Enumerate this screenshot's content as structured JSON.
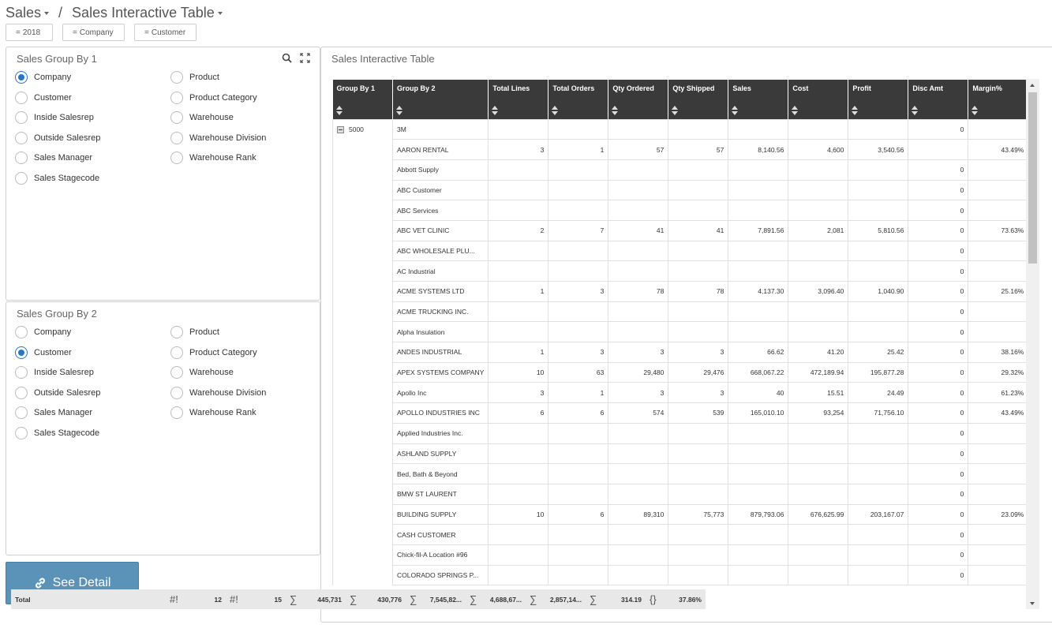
{
  "breadcrumb": {
    "root": "Sales",
    "separator": "/",
    "current": "Sales Interactive Table"
  },
  "filters": [
    {
      "symbol": "=",
      "label": "2018"
    },
    {
      "symbol": "=",
      "label": "Company"
    },
    {
      "symbol": "=",
      "label": "Customer"
    }
  ],
  "group1": {
    "title": "Sales Group By 1",
    "left": [
      "Company",
      "Customer",
      "Inside Salesrep",
      "Outside Salesrep",
      "Sales Manager",
      "Sales Stagecode"
    ],
    "right": [
      "Product",
      "Product Category",
      "Warehouse",
      "Warehouse Division",
      "Warehouse Rank"
    ],
    "selected": "Company"
  },
  "group2": {
    "title": "Sales Group By 2",
    "left": [
      "Company",
      "Customer",
      "Inside Salesrep",
      "Outside Salesrep",
      "Sales Manager",
      "Sales Stagecode"
    ],
    "right": [
      "Product",
      "Product Category",
      "Warehouse",
      "Warehouse Division",
      "Warehouse Rank"
    ],
    "selected": "Customer"
  },
  "detail_button": "See Detail",
  "table": {
    "title": "Sales Interactive Table",
    "columns": [
      "Group By 1",
      "Group By 2",
      "Total Lines",
      "Total Orders",
      "Qty Ordered",
      "Qty Shipped",
      "Sales",
      "Cost",
      "Profit",
      "Disc Amt",
      "Margin%"
    ],
    "group1_value": "5000",
    "rows": [
      [
        "3M",
        "",
        "",
        "",
        "",
        "",
        "",
        "",
        "0",
        ""
      ],
      [
        "AARON RENTAL",
        "3",
        "1",
        "57",
        "57",
        "8,140.56",
        "4,600",
        "3,540.56",
        "",
        "43.49%"
      ],
      [
        "Abbott Supply",
        "",
        "",
        "",
        "",
        "",
        "",
        "",
        "0",
        ""
      ],
      [
        "ABC Customer",
        "",
        "",
        "",
        "",
        "",
        "",
        "",
        "0",
        ""
      ],
      [
        "ABC Services",
        "",
        "",
        "",
        "",
        "",
        "",
        "",
        "0",
        ""
      ],
      [
        "ABC VET CLINIC",
        "2",
        "7",
        "41",
        "41",
        "7,891.56",
        "2,081",
        "5,810.56",
        "0",
        "73.63%"
      ],
      [
        "ABC WHOLESALE PLU...",
        "",
        "",
        "",
        "",
        "",
        "",
        "",
        "0",
        ""
      ],
      [
        "AC Industrial",
        "",
        "",
        "",
        "",
        "",
        "",
        "",
        "0",
        ""
      ],
      [
        "ACME SYSTEMS LTD",
        "1",
        "3",
        "78",
        "78",
        "4,137.30",
        "3,096.40",
        "1,040.90",
        "0",
        "25.16%"
      ],
      [
        "ACME TRUCKING INC.",
        "",
        "",
        "",
        "",
        "",
        "",
        "",
        "0",
        ""
      ],
      [
        "Alpha Insulation",
        "",
        "",
        "",
        "",
        "",
        "",
        "",
        "0",
        ""
      ],
      [
        "ANDES INDUSTRIAL",
        "1",
        "3",
        "3",
        "3",
        "66.62",
        "41.20",
        "25.42",
        "0",
        "38.16%"
      ],
      [
        "APEX SYSTEMS COMPANY",
        "10",
        "63",
        "29,480",
        "29,476",
        "668,067.22",
        "472,189.94",
        "195,877.28",
        "0",
        "29.32%"
      ],
      [
        "Apollo Inc",
        "3",
        "1",
        "3",
        "3",
        "40",
        "15.51",
        "24.49",
        "0",
        "61.23%"
      ],
      [
        "APOLLO INDUSTRIES INC",
        "6",
        "6",
        "574",
        "539",
        "165,010.10",
        "93,254",
        "71,756.10",
        "0",
        "43.49%"
      ],
      [
        "Applied Industries Inc.",
        "",
        "",
        "",
        "",
        "",
        "",
        "",
        "0",
        ""
      ],
      [
        "ASHLAND SUPPLY",
        "",
        "",
        "",
        "",
        "",
        "",
        "",
        "0",
        ""
      ],
      [
        "Bed, Bath & Beyond",
        "",
        "",
        "",
        "",
        "",
        "",
        "",
        "0",
        ""
      ],
      [
        "BMW ST LAURENT",
        "",
        "",
        "",
        "",
        "",
        "",
        "",
        "0",
        ""
      ],
      [
        "BUILDING SUPPLY",
        "10",
        "6",
        "89,310",
        "75,773",
        "879,793.06",
        "676,625.99",
        "203,167.07",
        "0",
        "23.09%"
      ],
      [
        "CASH CUSTOMER",
        "",
        "",
        "",
        "",
        "",
        "",
        "",
        "0",
        ""
      ],
      [
        "Chick-fil-A Location #96",
        "",
        "",
        "",
        "",
        "",
        "",
        "",
        "0",
        ""
      ],
      [
        "COLORADO SPRINGS P...",
        "",
        "",
        "",
        "",
        "",
        "",
        "",
        "0",
        ""
      ]
    ],
    "totals": {
      "label": "Total",
      "cells": [
        {
          "sym": "#!",
          "val": "12"
        },
        {
          "sym": "#!",
          "val": "15"
        },
        {
          "sym": "∑",
          "val": "445,731"
        },
        {
          "sym": "∑",
          "val": "430,776"
        },
        {
          "sym": "∑",
          "val": "7,545,82..."
        },
        {
          "sym": "∑",
          "val": "4,688,67..."
        },
        {
          "sym": "∑",
          "val": "2,857,14..."
        },
        {
          "sym": "∑",
          "val": "314.19"
        },
        {
          "sym": "{}",
          "val": "37.86%"
        }
      ]
    }
  },
  "icons": {
    "search": "search-icon",
    "expand": "expand-icon",
    "link": "link-icon"
  }
}
